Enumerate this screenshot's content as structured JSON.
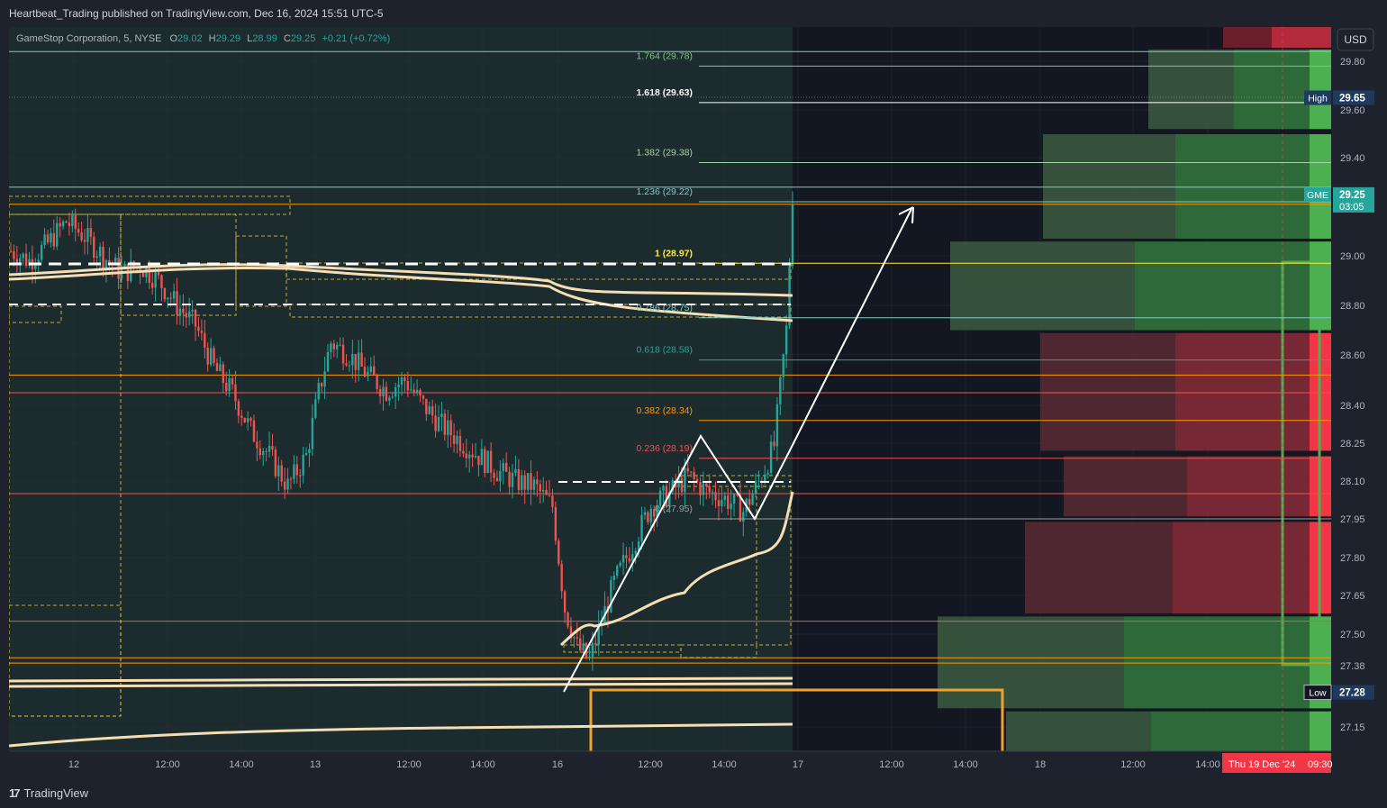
{
  "header": {
    "published": "Heartbeat_Trading published on TradingView.com, Dec 16, 2024 15:51 UTC-5"
  },
  "legend": {
    "symbol": "GameStop Corporation, 5, NYSE",
    "open_label": "O",
    "open": "29.02",
    "high_label": "H",
    "high": "29.29",
    "low_label": "L",
    "low": "28.99",
    "close_label": "C",
    "close": "29.25",
    "change": "+0.21 (+0.72%)"
  },
  "currency": "USD",
  "footer": {
    "logo_text": "TradingView",
    "logo_mark": "17"
  },
  "colors": {
    "background": "#131722",
    "up": "#26a69a",
    "down": "#ef5350",
    "fib": "#e0e3eb",
    "white": "#ffffff",
    "vwap": "#f5deb3",
    "orange": "#f0a030",
    "yellow_dash": "#e8d43a",
    "profile_green": "#4caf50",
    "profile_red": "#f23645"
  },
  "chart_data": {
    "type": "candlestick",
    "symbol": "GME",
    "interval": "5",
    "ylim": [
      27.02,
      29.88
    ],
    "x_ticks": [
      "12",
      "12:00",
      "14:00",
      "13",
      "12:00",
      "14:00",
      "16",
      "12:00",
      "14:00",
      "17",
      "12:00",
      "14:00",
      "18",
      "12:00",
      "14:00"
    ],
    "y_ticks": [
      "29.80",
      "29.60",
      "29.40",
      "29.00",
      "28.80",
      "28.60",
      "28.40",
      "28.25",
      "28.10",
      "27.95",
      "27.80",
      "27.65",
      "27.50",
      "27.38",
      "27.15"
    ],
    "price_badges": [
      {
        "label": "High",
        "value": "29.65"
      },
      {
        "label": "GME",
        "value": "29.25",
        "sub": "03:05"
      },
      {
        "label": "Low",
        "value": "27.28"
      }
    ],
    "date_badge": {
      "text": "Thu 19 Dec '24",
      "time": "09:30"
    },
    "fib_levels": [
      {
        "ratio": "1.764",
        "price": 29.78,
        "label": "1.764 (29.78)",
        "color": "#81c784"
      },
      {
        "ratio": "1.618",
        "price": 29.63,
        "label": "1.618 (29.63)",
        "color": "#ffffff"
      },
      {
        "ratio": "1.382",
        "price": 29.38,
        "label": "1.382 (29.38)",
        "color": "#a5d6a7"
      },
      {
        "ratio": "1.236",
        "price": 29.22,
        "label": "1.236 (29.22)",
        "color": "#80cbc4"
      },
      {
        "ratio": "1",
        "price": 28.97,
        "label": "1 (28.97)",
        "color": "#ffeb3b"
      },
      {
        "ratio": "0.786",
        "price": 28.75,
        "label": "0.786 (28.75)",
        "color": "#80cbc4"
      },
      {
        "ratio": "0.618",
        "price": 28.58,
        "label": "0.618 (28.58)",
        "color": "#26a69a"
      },
      {
        "ratio": "0.382",
        "price": 28.34,
        "label": "0.382 (28.34)",
        "color": "#ff9800"
      },
      {
        "ratio": "0.236",
        "price": 28.19,
        "label": "0.236 (28.19)",
        "color": "#ef5350"
      },
      {
        "ratio": "0",
        "price": 27.95,
        "label": "0 (27.95)",
        "color": "#9e9e9e"
      }
    ],
    "price_path": [
      [
        0,
        29.02
      ],
      [
        6,
        28.98
      ],
      [
        12,
        29.05
      ],
      [
        18,
        29.14
      ],
      [
        24,
        29.08
      ],
      [
        30,
        29.0
      ],
      [
        36,
        28.93
      ],
      [
        42,
        28.96
      ],
      [
        48,
        28.9
      ],
      [
        54,
        28.8
      ],
      [
        60,
        28.72
      ],
      [
        66,
        28.55
      ],
      [
        72,
        28.45
      ],
      [
        78,
        28.3
      ],
      [
        84,
        28.2
      ],
      [
        90,
        28.08
      ],
      [
        96,
        28.2
      ],
      [
        100,
        28.45
      ],
      [
        104,
        28.65
      ],
      [
        110,
        28.6
      ],
      [
        116,
        28.52
      ],
      [
        122,
        28.46
      ],
      [
        128,
        28.5
      ],
      [
        134,
        28.4
      ],
      [
        140,
        28.32
      ],
      [
        146,
        28.26
      ],
      [
        152,
        28.2
      ],
      [
        158,
        28.14
      ],
      [
        164,
        28.1
      ],
      [
        170,
        28.08
      ],
      [
        176,
        28.0
      ],
      [
        180,
        27.6
      ],
      [
        184,
        27.45
      ],
      [
        188,
        27.4
      ],
      [
        192,
        27.55
      ],
      [
        196,
        27.7
      ],
      [
        202,
        27.85
      ],
      [
        208,
        28.0
      ],
      [
        214,
        28.05
      ],
      [
        220,
        28.12
      ],
      [
        226,
        28.06
      ],
      [
        232,
        28.03
      ],
      [
        238,
        27.98
      ],
      [
        244,
        28.12
      ],
      [
        248,
        28.24
      ],
      [
        252,
        28.7
      ],
      [
        254,
        29.25
      ]
    ],
    "volume_profile": [
      {
        "price_from": 29.52,
        "price_to": 29.85,
        "up": 0.55,
        "down": 0.0,
        "row_color": "green"
      },
      {
        "price_from": 29.07,
        "price_to": 29.5,
        "up": 0.75,
        "down": 0.0,
        "row_color": "green"
      },
      {
        "price_from": 28.7,
        "price_to": 29.06,
        "up": 1.0,
        "down": 0.0,
        "row_color": "green"
      },
      {
        "price_from": 28.22,
        "price_to": 28.69,
        "up": 0.0,
        "down": 0.85,
        "row_color": "red"
      },
      {
        "price_from": 27.96,
        "price_to": 28.2,
        "up": 0.0,
        "down": 0.8,
        "row_color": "red"
      },
      {
        "price_from": 27.58,
        "price_to": 27.94,
        "up": 0.0,
        "down": 0.88,
        "row_color": "red"
      },
      {
        "price_from": 27.22,
        "price_to": 27.57,
        "up": 1.0,
        "down": 0.0,
        "row_color": "green"
      },
      {
        "price_from": 27.02,
        "price_to": 27.21,
        "up": 0.95,
        "down": 0.0,
        "row_color": "green"
      }
    ]
  }
}
